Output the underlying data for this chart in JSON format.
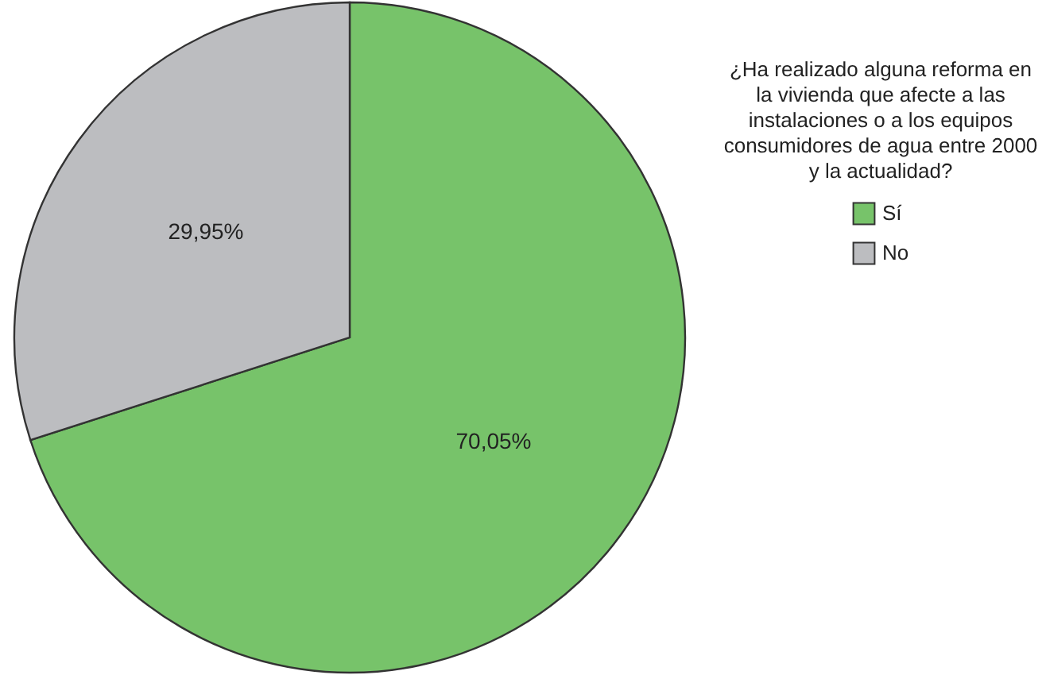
{
  "chart_data": {
    "type": "pie",
    "legend_title": "¿Ha realizado alguna reforma en la vivienda que afecte a las instalaciones o a los equipos consumidores de agua entre 2000 y la actualidad?",
    "categories": [
      "Sí",
      "No"
    ],
    "values": [
      70.05,
      29.95
    ],
    "colors": [
      "#77c36a",
      "#bcbdc0"
    ],
    "value_labels": [
      "70,05%",
      "29,95%"
    ],
    "legend": "right"
  }
}
